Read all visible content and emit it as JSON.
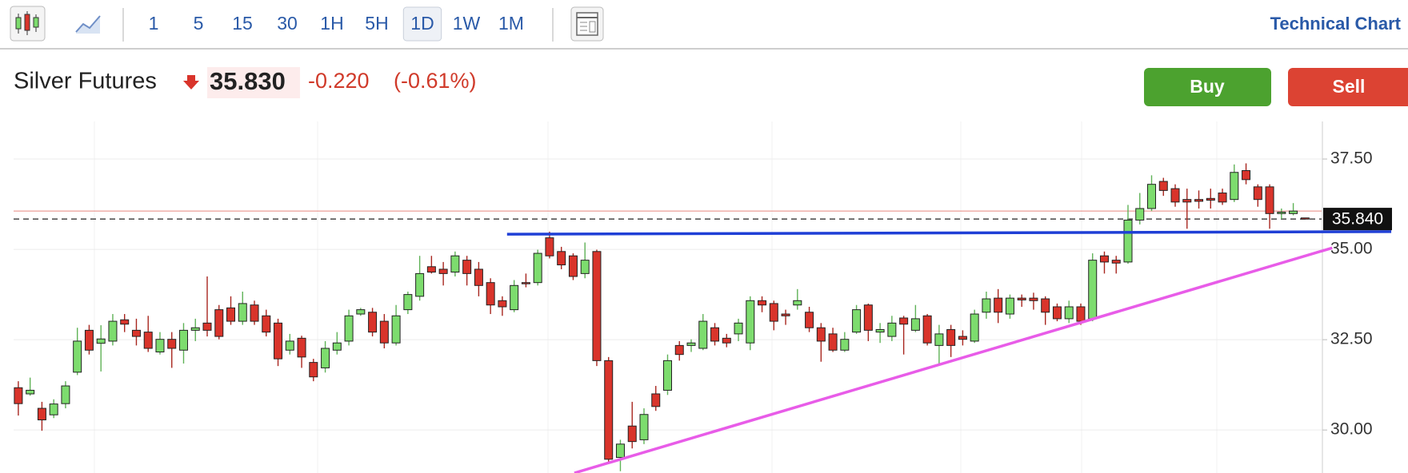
{
  "toolbar": {
    "intervals": [
      "1",
      "5",
      "15",
      "30",
      "1H",
      "5H",
      "1D",
      "1W",
      "1M"
    ],
    "selected_index": 6,
    "link": "Technical Chart"
  },
  "instrument": {
    "name": "Silver Futures",
    "price": "35.830",
    "change": "-0.220",
    "change_pct": "(-0.61%)"
  },
  "buttons": {
    "buy": "Buy",
    "sell": "Sell"
  },
  "chart_data": {
    "type": "candlestick",
    "up_color": "#7ddc6e",
    "down_color": "#d9342b",
    "xlim": [
      -0.4,
      110.4
    ],
    "ylim": [
      28.81,
      38.54
    ],
    "yticks": [
      {
        "value": 30,
        "label": "30.00"
      },
      {
        "value": 32.5,
        "label": "32.50"
      },
      {
        "value": 35,
        "label": "35.00"
      },
      {
        "value": 37.5,
        "label": "37.50"
      }
    ],
    "grid": true,
    "last_price": {
      "value": 35.84,
      "label": "35.840"
    },
    "reference_line": {
      "value": 36.06,
      "color": "#e8877f"
    },
    "trendlines": [
      {
        "color": "#1f3fd6",
        "points": [
          [
            41.4,
            35.42
          ],
          [
            116.3,
            35.49
          ]
        ]
      },
      {
        "color": "#e85ce8",
        "points": [
          [
            47.1,
            28.81
          ],
          [
            111.3,
            35.04
          ]
        ]
      }
    ],
    "ohlc": [
      [
        31.17,
        31.35,
        30.4,
        30.73
      ],
      [
        31.0,
        31.45,
        30.95,
        31.1
      ],
      [
        30.6,
        30.78,
        29.98,
        30.28
      ],
      [
        30.42,
        30.85,
        30.33,
        30.72
      ],
      [
        30.73,
        31.35,
        30.6,
        31.22
      ],
      [
        31.6,
        32.83,
        31.52,
        32.46
      ],
      [
        32.76,
        32.91,
        32.09,
        32.21
      ],
      [
        32.4,
        32.9,
        31.62,
        32.52
      ],
      [
        32.46,
        33.21,
        32.34,
        33.01
      ],
      [
        33.05,
        33.21,
        32.71,
        32.93
      ],
      [
        32.76,
        33.08,
        32.34,
        32.59
      ],
      [
        32.71,
        33.16,
        32.16,
        32.26
      ],
      [
        32.16,
        32.71,
        32.09,
        32.51
      ],
      [
        32.51,
        32.71,
        31.72,
        32.26
      ],
      [
        32.21,
        32.96,
        31.84,
        32.76
      ],
      [
        32.76,
        33.08,
        32.46,
        32.83
      ],
      [
        32.96,
        34.25,
        32.59,
        32.76
      ],
      [
        33.33,
        33.46,
        32.51,
        32.59
      ],
      [
        33.38,
        33.7,
        32.91,
        33.01
      ],
      [
        33.01,
        33.83,
        32.91,
        33.5
      ],
      [
        33.46,
        33.58,
        32.91,
        33.01
      ],
      [
        33.16,
        33.33,
        32.59,
        32.71
      ],
      [
        32.96,
        33.08,
        31.77,
        31.97
      ],
      [
        32.21,
        32.66,
        32.09,
        32.46
      ],
      [
        32.54,
        32.61,
        31.72,
        32.02
      ],
      [
        31.87,
        31.97,
        31.35,
        31.47
      ],
      [
        31.72,
        32.46,
        31.59,
        32.26
      ],
      [
        32.21,
        32.71,
        32.09,
        32.41
      ],
      [
        32.46,
        33.33,
        32.34,
        33.16
      ],
      [
        33.21,
        33.38,
        33.16,
        33.33
      ],
      [
        33.26,
        33.38,
        32.59,
        32.71
      ],
      [
        33.01,
        33.21,
        32.26,
        32.41
      ],
      [
        32.41,
        33.46,
        32.34,
        33.16
      ],
      [
        33.33,
        33.83,
        33.21,
        33.75
      ],
      [
        33.7,
        34.82,
        33.58,
        34.33
      ],
      [
        34.52,
        34.82,
        34.33,
        34.37
      ],
      [
        34.45,
        34.65,
        34.0,
        34.33
      ],
      [
        34.37,
        34.94,
        34.25,
        34.82
      ],
      [
        34.7,
        34.82,
        34.0,
        34.33
      ],
      [
        34.45,
        34.65,
        33.7,
        34.0
      ],
      [
        34.08,
        34.2,
        33.21,
        33.46
      ],
      [
        33.58,
        33.7,
        33.16,
        33.41
      ],
      [
        33.33,
        34.15,
        33.26,
        34.0
      ],
      [
        34.08,
        34.33,
        33.95,
        34.05
      ],
      [
        34.08,
        34.99,
        34.0,
        34.89
      ],
      [
        35.32,
        35.49,
        34.75,
        34.82
      ],
      [
        34.94,
        35.07,
        34.45,
        34.57
      ],
      [
        34.82,
        34.89,
        34.15,
        34.25
      ],
      [
        34.33,
        35.19,
        34.2,
        34.7
      ],
      [
        34.94,
        34.99,
        31.77,
        31.92
      ],
      [
        31.92,
        32.02,
        29.11,
        29.19
      ],
      [
        29.24,
        29.73,
        28.86,
        29.61
      ],
      [
        30.11,
        30.78,
        29.49,
        29.68
      ],
      [
        29.73,
        30.6,
        29.61,
        30.43
      ],
      [
        31.0,
        31.22,
        30.53,
        30.65
      ],
      [
        31.1,
        32.09,
        30.97,
        31.92
      ],
      [
        32.34,
        32.46,
        31.92,
        32.09
      ],
      [
        32.34,
        32.51,
        32.16,
        32.41
      ],
      [
        32.26,
        33.21,
        32.21,
        33.01
      ],
      [
        32.83,
        32.96,
        32.34,
        32.46
      ],
      [
        32.54,
        32.66,
        32.29,
        32.41
      ],
      [
        32.66,
        33.08,
        32.46,
        32.96
      ],
      [
        32.41,
        33.7,
        32.21,
        33.58
      ],
      [
        33.58,
        33.7,
        33.26,
        33.46
      ],
      [
        33.5,
        33.58,
        32.76,
        33.01
      ],
      [
        33.21,
        33.33,
        32.91,
        33.16
      ],
      [
        33.46,
        33.9,
        33.33,
        33.58
      ],
      [
        33.26,
        33.41,
        32.71,
        32.83
      ],
      [
        32.83,
        32.96,
        31.89,
        32.46
      ],
      [
        32.66,
        32.83,
        32.16,
        32.21
      ],
      [
        32.21,
        32.71,
        32.16,
        32.51
      ],
      [
        32.71,
        33.46,
        32.66,
        33.33
      ],
      [
        33.46,
        33.5,
        32.46,
        32.76
      ],
      [
        32.71,
        32.96,
        32.41,
        32.78
      ],
      [
        32.59,
        33.16,
        32.46,
        32.96
      ],
      [
        33.1,
        33.16,
        32.09,
        32.93
      ],
      [
        32.76,
        33.46,
        32.71,
        33.08
      ],
      [
        33.16,
        33.21,
        32.34,
        32.41
      ],
      [
        32.34,
        32.91,
        31.84,
        32.66
      ],
      [
        32.78,
        32.91,
        32.02,
        32.34
      ],
      [
        32.59,
        32.76,
        32.34,
        32.51
      ],
      [
        32.46,
        33.33,
        32.41,
        33.21
      ],
      [
        33.26,
        33.83,
        33.08,
        33.63
      ],
      [
        33.65,
        33.9,
        32.96,
        33.26
      ],
      [
        33.21,
        33.75,
        33.08,
        33.65
      ],
      [
        33.65,
        33.75,
        33.41,
        33.6
      ],
      [
        33.65,
        33.8,
        33.33,
        33.58
      ],
      [
        33.63,
        33.7,
        32.91,
        33.26
      ],
      [
        33.41,
        33.5,
        33.01,
        33.08
      ],
      [
        33.08,
        33.58,
        32.96,
        33.41
      ],
      [
        33.41,
        33.5,
        32.91,
        33.01
      ],
      [
        33.08,
        34.89,
        33.01,
        34.7
      ],
      [
        34.82,
        34.94,
        34.33,
        34.65
      ],
      [
        34.7,
        34.82,
        34.33,
        34.62
      ],
      [
        34.65,
        36.23,
        34.6,
        35.81
      ],
      [
        35.81,
        36.56,
        35.69,
        36.13
      ],
      [
        36.13,
        37.05,
        36.06,
        36.8
      ],
      [
        36.88,
        36.98,
        36.48,
        36.63
      ],
      [
        36.68,
        36.8,
        36.18,
        36.31
      ],
      [
        36.38,
        36.68,
        35.57,
        36.31
      ],
      [
        36.38,
        36.63,
        36.13,
        36.33
      ],
      [
        36.41,
        36.68,
        36.13,
        36.36
      ],
      [
        36.56,
        36.68,
        36.23,
        36.31
      ],
      [
        36.38,
        37.35,
        36.31,
        37.13
      ],
      [
        37.18,
        37.38,
        36.8,
        36.93
      ],
      [
        36.73,
        36.8,
        36.18,
        36.38
      ],
      [
        36.73,
        36.8,
        35.57,
        35.99
      ],
      [
        35.99,
        36.13,
        35.84,
        36.03
      ],
      [
        35.99,
        36.28,
        35.94,
        36.06
      ],
      [
        35.87,
        35.87,
        35.84,
        35.84
      ]
    ]
  }
}
